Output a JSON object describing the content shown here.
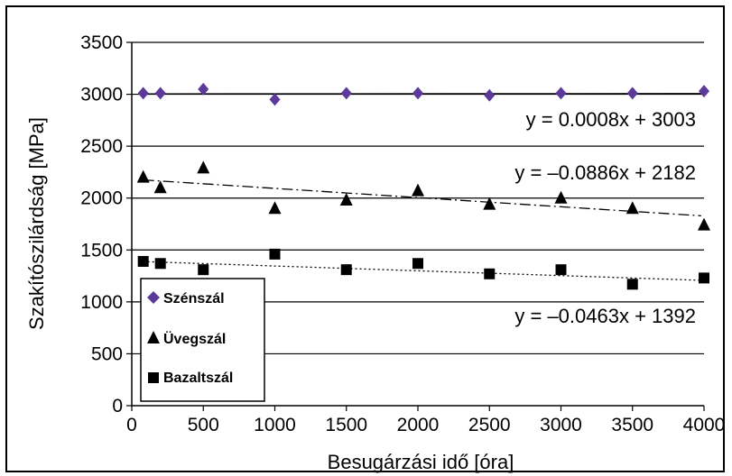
{
  "chart_data": {
    "type": "scatter",
    "xlabel": "Besugárzási idő [óra]",
    "ylabel": "Szakítószilárdság [MPa]",
    "xlim": [
      0,
      4000
    ],
    "ylim": [
      0,
      3500
    ],
    "x_ticks": [
      "0",
      "500",
      "1000",
      "1500",
      "2000",
      "2500",
      "3000",
      "3500",
      "4000"
    ],
    "y_ticks": [
      "0",
      "500",
      "1000",
      "1500",
      "2000",
      "2500",
      "3000",
      "3500"
    ],
    "grid": "horizontal",
    "legend_position": "bottom-left",
    "series": [
      {
        "name": "Szénszál",
        "marker": "diamond",
        "color": "#5b3a9a",
        "x": [
          80,
          200,
          500,
          1000,
          1500,
          2000,
          2500,
          3000,
          3500,
          4000
        ],
        "y": [
          3010,
          3010,
          3050,
          2950,
          3010,
          3010,
          2990,
          3010,
          3010,
          3030
        ],
        "trendline": {
          "slope": 0.0008,
          "intercept": 3003,
          "style": "solid",
          "label": "y = 0.0008x + 3003"
        }
      },
      {
        "name": "Üvegszál",
        "marker": "triangle",
        "color": "#000000",
        "x": [
          80,
          200,
          500,
          1000,
          1500,
          2000,
          2500,
          3000,
          3500,
          4000
        ],
        "y": [
          2200,
          2100,
          2290,
          1900,
          1980,
          2070,
          1940,
          2000,
          1900,
          1740
        ],
        "trendline": {
          "slope": -0.0886,
          "intercept": 2182,
          "style": "dash-dot",
          "label": "y = –0.0886x + 2182"
        }
      },
      {
        "name": "Bazaltszál",
        "marker": "square",
        "color": "#000000",
        "x": [
          80,
          200,
          500,
          1000,
          1500,
          2000,
          2500,
          3000,
          3500,
          4000
        ],
        "y": [
          1390,
          1370,
          1310,
          1460,
          1310,
          1370,
          1270,
          1310,
          1170,
          1230
        ],
        "trendline": {
          "slope": -0.0463,
          "intercept": 1392,
          "style": "dotted",
          "label": "y = –0.0463x + 1392"
        }
      }
    ]
  }
}
